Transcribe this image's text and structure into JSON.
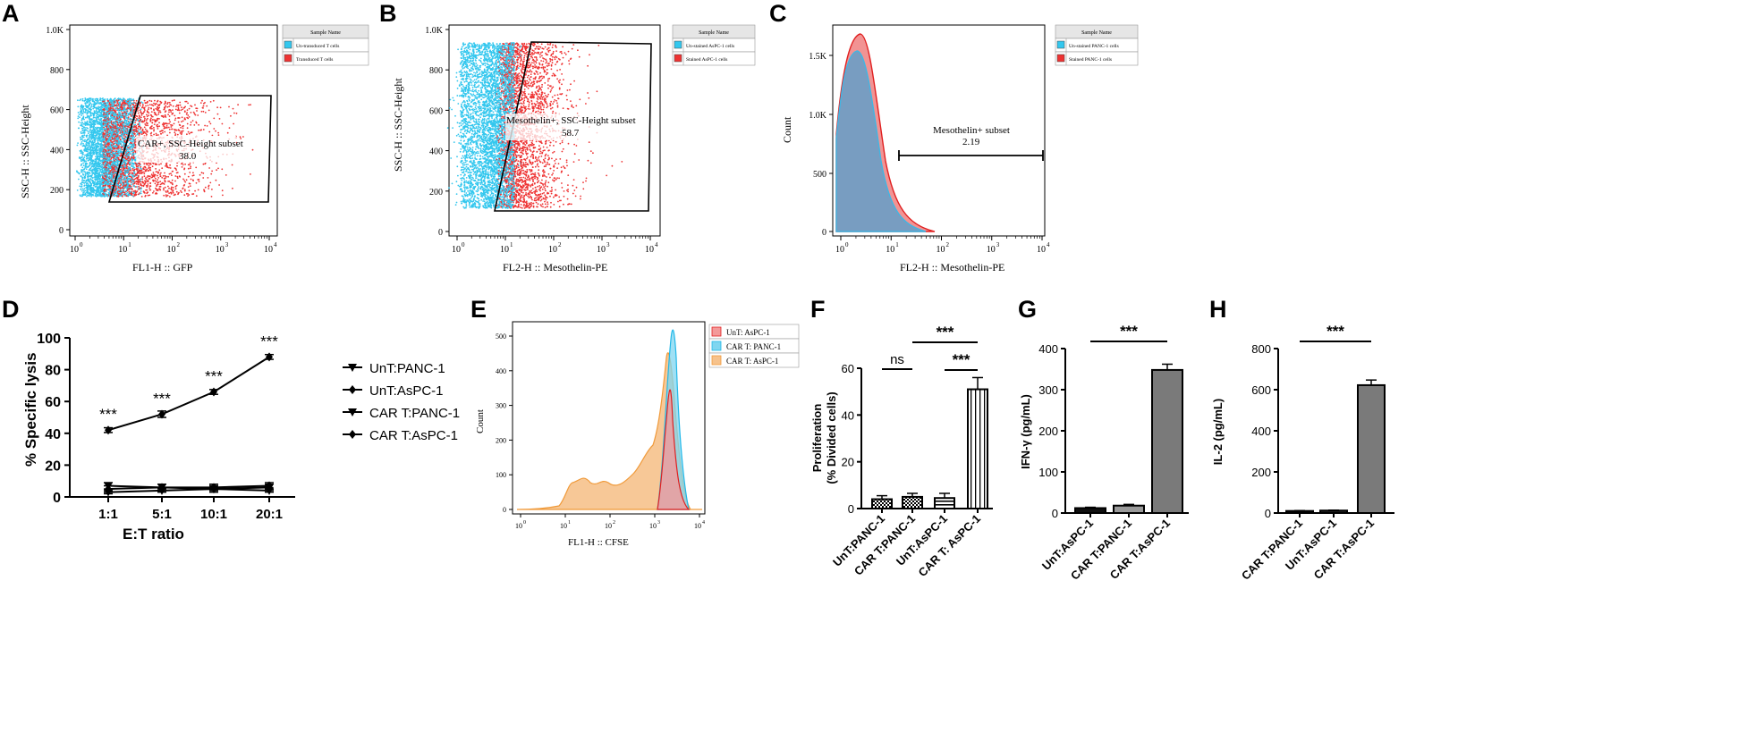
{
  "colors": {
    "cyan": "#33c7ee",
    "red": "#ee3333",
    "orange": "#f3a253",
    "gray": "#808080",
    "dark": "#000000",
    "blueFill": "#5e9ecb",
    "bar_gray": "#7a7a7a"
  },
  "panel_labels": [
    "A",
    "B",
    "C",
    "D",
    "E",
    "F",
    "G",
    "H"
  ],
  "chart_data": [
    {
      "id": "A",
      "type": "scatter",
      "xlabel": "FL1-H :: GFP",
      "ylabel": "SSC-H :: SSC-Height",
      "xticks": [
        "10",
        "10",
        "10",
        "10",
        "10"
      ],
      "xexp": [
        "0",
        "1",
        "2",
        "3",
        "4"
      ],
      "yticks": [
        "0",
        "200",
        "400",
        "600",
        "800",
        "1.0K"
      ],
      "ylim": [
        0,
        1000
      ],
      "legend_title": "Sample Name",
      "legend": [
        "Un-transduced T cells",
        "Transduced T cells"
      ],
      "gate_name": "CAR+, SSC-Height subset",
      "gate_value": "38.0"
    },
    {
      "id": "B",
      "type": "scatter",
      "xlabel": "FL2-H :: Mesothelin-PE",
      "ylabel": "SSC-H :: SSC-Height",
      "xticks": [
        "10",
        "10",
        "10",
        "10",
        "10"
      ],
      "xexp": [
        "0",
        "1",
        "2",
        "3",
        "4"
      ],
      "yticks": [
        "0",
        "200",
        "400",
        "600",
        "800",
        "1.0K"
      ],
      "ylim": [
        0,
        1000
      ],
      "legend_title": "Sample Name",
      "legend": [
        "Un-stained AsPC-1 cells",
        "Stained AsPC-1 cells"
      ],
      "gate_name": "Mesothelin+, SSC-Height subset",
      "gate_value": "58.7"
    },
    {
      "id": "C",
      "type": "area",
      "xlabel": "FL2-H :: Mesothelin-PE",
      "ylabel": "Count",
      "xticks": [
        "10",
        "10",
        "10",
        "10",
        "10"
      ],
      "xexp": [
        "0",
        "1",
        "2",
        "3",
        "4"
      ],
      "yticks": [
        "0",
        "500",
        "1.0K",
        "1.5K"
      ],
      "ylim": [
        0,
        1700
      ],
      "legend_title": "Sample Name",
      "legend": [
        "Un-stained PANC-1 cells",
        "Stained PANC-1 cells"
      ],
      "gate_name": "Mesothelin+ subset",
      "gate_value": "2.19"
    },
    {
      "id": "D",
      "type": "line",
      "xlabel": "E:T ratio",
      "ylabel": "% Specific lysis",
      "categories": [
        "1:1",
        "5:1",
        "10:1",
        "20:1"
      ],
      "yticks": [
        "0",
        "20",
        "40",
        "60",
        "80",
        "100"
      ],
      "ylim": [
        0,
        100
      ],
      "series": [
        {
          "name": "UnT:PANC-1",
          "values": [
            7,
            6,
            5,
            6
          ],
          "errors": [
            2,
            2,
            2,
            2
          ]
        },
        {
          "name": "UnT:AsPC-1",
          "values": [
            5,
            6,
            6,
            7
          ],
          "errors": [
            2,
            2,
            2,
            2
          ]
        },
        {
          "name": "CAR T:PANC-1",
          "values": [
            3,
            4,
            5,
            4
          ],
          "errors": [
            1,
            1,
            1,
            1
          ]
        },
        {
          "name": "CAR T:AsPC-1",
          "values": [
            42,
            52,
            66,
            88
          ],
          "errors": [
            1.5,
            2,
            1.5,
            1.5
          ]
        }
      ],
      "significance": [
        "***",
        "***",
        "***",
        "***"
      ]
    },
    {
      "id": "E",
      "type": "area",
      "xlabel": "FL1-H :: CFSE",
      "ylabel": "Count",
      "xticks": [
        "10",
        "10",
        "10",
        "10",
        "10"
      ],
      "xexp": [
        "0",
        "1",
        "2",
        "3",
        "4"
      ],
      "yticks": [
        "0",
        "100",
        "200",
        "300",
        "400",
        "500"
      ],
      "ylim": [
        0,
        530
      ],
      "legend": [
        "UnT: AsPC-1",
        "CAR T: PANC-1",
        "CAR T: AsPC-1"
      ]
    },
    {
      "id": "F",
      "type": "bar",
      "ylabel": "Proliferation\n(% Divided cells)",
      "ylabel_lines": [
        "Proliferation",
        "(% Divided cells)"
      ],
      "categories": [
        "UnT:PANC-1",
        "CAR T:PANC-1",
        "UnT:AsPC-1",
        "CAR T: AsPC-1"
      ],
      "values": [
        4,
        5,
        4.5,
        51
      ],
      "errors": [
        1.5,
        1.5,
        2,
        5
      ],
      "yticks": [
        "0",
        "20",
        "40",
        "60"
      ],
      "ylim": [
        0,
        60
      ],
      "annotations": [
        "ns",
        "***",
        "***"
      ]
    },
    {
      "id": "G",
      "type": "bar",
      "ylabel": "IFN-γ (pg/mL)",
      "categories": [
        "UnT:AsPC-1",
        "CAR T:PANC-1",
        "CAR T:AsPC-1"
      ],
      "values": [
        12,
        18,
        348
      ],
      "errors": [
        2,
        3,
        14
      ],
      "yticks": [
        "0",
        "100",
        "200",
        "300",
        "400"
      ],
      "ylim": [
        0,
        400
      ],
      "annotations": [
        "***"
      ]
    },
    {
      "id": "H",
      "type": "bar",
      "ylabel": "IL-2 (pg/mL)",
      "categories": [
        "CAR T:PANC-1",
        "UnT:AsPC-1",
        "CAR T:AsPC-1"
      ],
      "values": [
        10,
        12,
        622
      ],
      "errors": [
        2,
        2,
        25
      ],
      "yticks": [
        "0",
        "200",
        "400",
        "600",
        "800"
      ],
      "ylim": [
        0,
        800
      ],
      "annotations": [
        "***"
      ]
    }
  ]
}
